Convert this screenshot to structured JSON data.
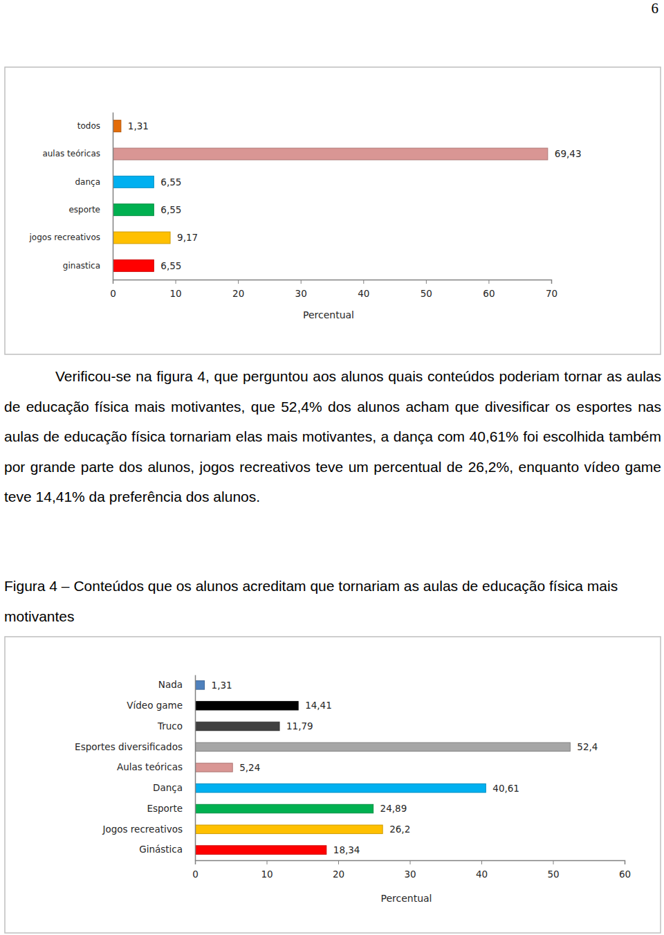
{
  "page_number": "6",
  "paragraph": "Verificou-se na figura 4, que perguntou aos alunos quais conteúdos poderiam tornar as aulas de educação física mais motivantes, que 52,4% dos alunos acham que divesificar os esportes nas aulas de educação física tornariam elas mais motivantes, a dança com 40,61% foi escolhida também por grande parte dos alunos, jogos recreativos teve um percentual de 26,2%, enquanto vídeo game teve 14,41% da preferência dos alunos.",
  "caption": "Figura 4 – Conteúdos que os alunos acreditam que tornariam as aulas de educação física mais motivantes",
  "chart_data": [
    {
      "type": "bar",
      "orientation": "horizontal",
      "categories": [
        "todos",
        "aulas teóricas",
        "dança",
        "esporte",
        "jogos recreativos",
        "ginastica"
      ],
      "values": [
        1.31,
        69.43,
        6.55,
        6.55,
        9.17,
        6.55
      ],
      "value_labels": [
        "1,31",
        "69,43",
        "6,55",
        "6,55",
        "9,17",
        "6,55"
      ],
      "colors": [
        "#e36c09",
        "#d99694",
        "#00b0f0",
        "#00b050",
        "#ffc000",
        "#ff0000"
      ],
      "data_labels": true,
      "grid": false,
      "xlabel": "Percentual",
      "xlim": [
        0,
        70
      ],
      "xticks": [
        0,
        10,
        20,
        30,
        40,
        50,
        60,
        70
      ]
    },
    {
      "type": "bar",
      "orientation": "horizontal",
      "categories": [
        "Nada",
        "Vídeo game",
        "Truco",
        "Esportes diversificados",
        "Aulas teóricas",
        "Dança",
        "Esporte",
        "Jogos recreativos",
        "Ginástica"
      ],
      "values": [
        1.31,
        14.41,
        11.79,
        52.4,
        5.24,
        40.61,
        24.89,
        26.2,
        18.34
      ],
      "value_labels": [
        "1,31",
        "14,41",
        "11,79",
        "52,4",
        "5,24",
        "40,61",
        "24,89",
        "26,2",
        "18,34"
      ],
      "colors": [
        "#4f81bd",
        "#000000",
        "#404040",
        "#a6a6a6",
        "#d99694",
        "#00b0f0",
        "#00b050",
        "#ffc000",
        "#ff0000"
      ],
      "data_labels": true,
      "grid": false,
      "xlabel": "Percentual",
      "xlim": [
        0,
        60
      ],
      "xticks": [
        0,
        10,
        20,
        30,
        40,
        50,
        60
      ]
    }
  ]
}
